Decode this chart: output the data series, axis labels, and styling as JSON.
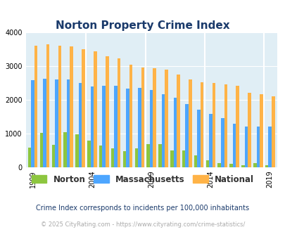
{
  "title": "Norton Property Crime Index",
  "title_color": "#1a3a6b",
  "years": [
    1999,
    2000,
    2001,
    2002,
    2003,
    2004,
    2005,
    2006,
    2007,
    2008,
    2009,
    2010,
    2011,
    2012,
    2013,
    2014,
    2015,
    2016,
    2017,
    2018,
    2019
  ],
  "norton": [
    580,
    1010,
    650,
    1040,
    970,
    790,
    630,
    560,
    470,
    550,
    690,
    680,
    490,
    500,
    340,
    200,
    110,
    100,
    50,
    110,
    50
  ],
  "massachusetts": [
    2580,
    2620,
    2610,
    2600,
    2500,
    2390,
    2420,
    2420,
    2330,
    2350,
    2290,
    2170,
    2060,
    1880,
    1710,
    1580,
    1460,
    1280,
    1200,
    1200,
    1200
  ],
  "national": [
    3610,
    3640,
    3610,
    3580,
    3510,
    3430,
    3300,
    3230,
    3050,
    2950,
    2930,
    2890,
    2760,
    2610,
    2510,
    2490,
    2450,
    2420,
    2200,
    2160,
    2100
  ],
  "norton_color": "#8dc63f",
  "mass_color": "#4da6ff",
  "national_color": "#ffb347",
  "bg_color": "#e0eef5",
  "ylim": [
    0,
    4000
  ],
  "yticks": [
    0,
    1000,
    2000,
    3000,
    4000
  ],
  "xlabel_ticks": [
    1999,
    2004,
    2009,
    2014,
    2019
  ],
  "subtitle": "Crime Index corresponds to incidents per 100,000 inhabitants",
  "footer": "© 2025 CityRating.com - https://www.cityrating.com/crime-statistics/",
  "subtitle_color": "#1a3a6b",
  "footer_color": "#aaaaaa",
  "legend_labels": [
    "Norton",
    "Massachusetts",
    "National"
  ],
  "bar_width": 0.27
}
